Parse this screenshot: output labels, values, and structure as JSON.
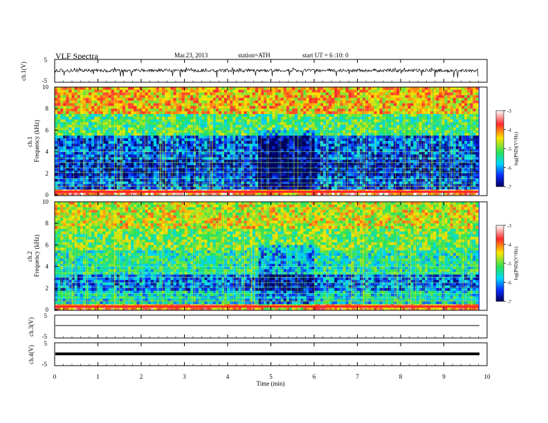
{
  "header": {
    "title": "VLF  Spectra",
    "date": "Mar.23, 2013",
    "station": "station=ATH",
    "start": "start  UT  =   6  :10: 0"
  },
  "colorbar": {
    "label": "log(PSD)(V²/Hz)",
    "ticks": [
      "-3",
      "-4",
      "-5",
      "-6",
      "-7"
    ],
    "colors": [
      "#ffffff",
      "#ff2a2a",
      "#ffe600",
      "#27e35a",
      "#00d8ff",
      "#0a2cff",
      "#000060"
    ]
  },
  "chart_data": [
    {
      "type": "line",
      "panel": "ch1-waveform",
      "ylabel": "ch.1(V)",
      "yticks": [
        "5",
        "-5"
      ],
      "ylim": [
        -5,
        5
      ],
      "description_level": "noisy waveform around 0 V with spikes to about -3 V",
      "x_range": [
        0,
        9.8
      ]
    },
    {
      "type": "heatmap",
      "panel": "ch1-spectrogram",
      "ylabel": "ch.1\nFrequency  (kHz)",
      "yticks": [
        "0",
        "2",
        "4",
        "6",
        "8",
        "10"
      ],
      "ylim": [
        0,
        10
      ],
      "x_range": [
        0,
        9.8
      ],
      "bands_khz": [
        {
          "from": 0,
          "to": 0.6,
          "level": -3.6
        },
        {
          "from": 0.6,
          "to": 1.8,
          "level": -6.3
        },
        {
          "from": 1.8,
          "to": 3.2,
          "level": -6.6
        },
        {
          "from": 3.2,
          "to": 5.5,
          "level": -6.3
        },
        {
          "from": 5.5,
          "to": 7.5,
          "level": -5.2
        },
        {
          "from": 7.5,
          "to": 10,
          "level": -4.3
        }
      ],
      "quiet_interval_min": [
        4.7,
        6.0
      ]
    },
    {
      "type": "heatmap",
      "panel": "ch2-spectrogram",
      "ylabel": "ch.2\nFrequency  (kHz)",
      "yticks": [
        "0",
        "2",
        "4",
        "6",
        "8",
        "10"
      ],
      "ylim": [
        0,
        10
      ],
      "x_range": [
        0,
        9.8
      ],
      "bands_khz": [
        {
          "from": 0,
          "to": 0.6,
          "level": -4.0
        },
        {
          "from": 0.6,
          "to": 1.8,
          "level": -5.6
        },
        {
          "from": 1.8,
          "to": 3.2,
          "level": -6.2
        },
        {
          "from": 3.2,
          "to": 5.5,
          "level": -5.4
        },
        {
          "from": 5.5,
          "to": 7.5,
          "level": -5.0
        },
        {
          "from": 7.5,
          "to": 10,
          "level": -4.6
        }
      ],
      "quiet_interval_min": [
        4.7,
        6.0
      ]
    },
    {
      "type": "line",
      "panel": "ch3-waveform",
      "ylabel": "ch.3(V)",
      "yticks": [
        "5",
        "-5"
      ],
      "ylim": [
        -5,
        5
      ],
      "flat_level": 0,
      "x_range": [
        0,
        9.8
      ]
    },
    {
      "type": "line",
      "panel": "ch4-waveform",
      "ylabel": "ch.4(V)",
      "yticks": [
        "5",
        "-5"
      ],
      "ylim": [
        -5,
        5
      ],
      "flat_level": 0,
      "x_range": [
        0,
        9.8
      ]
    }
  ],
  "xaxis": {
    "label": "Time  (min)",
    "ticks": [
      "0",
      "1",
      "2",
      "3",
      "4",
      "5",
      "6",
      "7",
      "8",
      "9",
      "10"
    ],
    "xlim": [
      0,
      10
    ]
  }
}
